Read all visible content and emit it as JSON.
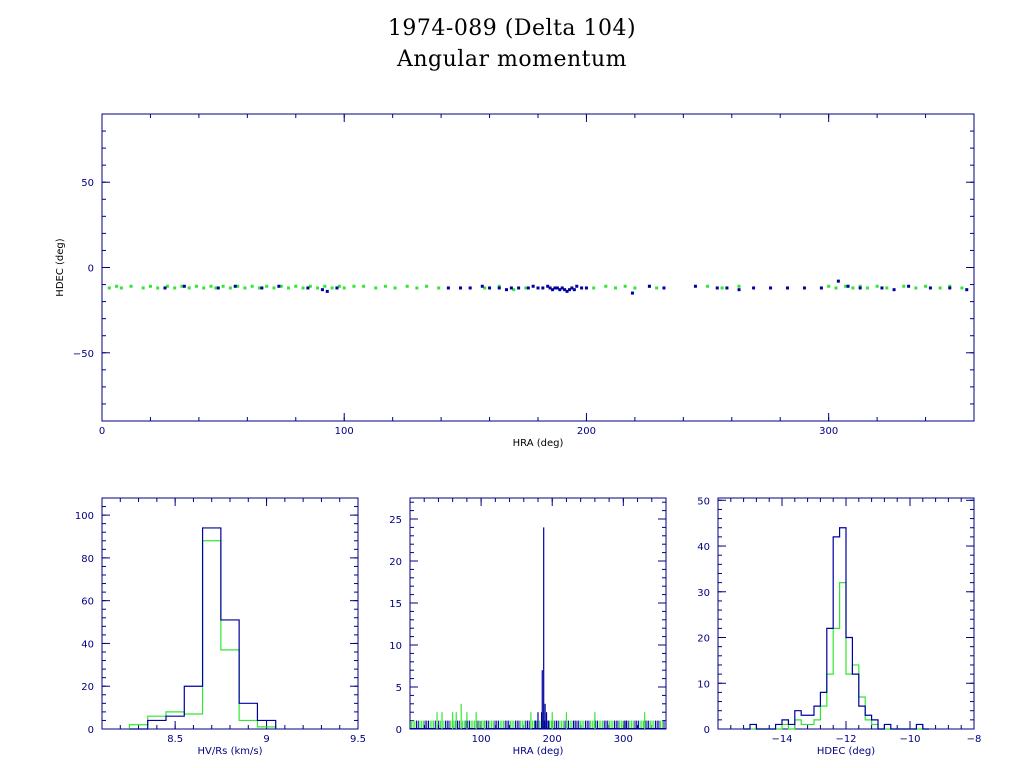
{
  "header": {
    "title": "1974-089 (Delta 104)",
    "subtitle": "Angular momentum"
  },
  "colors": {
    "blue": "#0000a0",
    "green": "#33e633",
    "axis": "#000080",
    "text_blue": "#000080"
  },
  "chart_data": [
    {
      "type": "scatter",
      "name": "hra-hdec",
      "xlabel": "HRA (deg)",
      "ylabel": "HDEC (deg)",
      "xlim": [
        0,
        360
      ],
      "ylim": [
        -90,
        90
      ],
      "xticks": [
        0,
        100,
        200,
        300
      ],
      "yticks": [
        -50,
        0,
        50
      ],
      "xticklabels": [
        "0",
        "100",
        "200",
        "300"
      ],
      "yticklabels": [
        "−50",
        "0",
        "50"
      ],
      "series": [
        {
          "color": "green",
          "x": [
            3,
            6,
            8,
            12,
            17,
            20,
            23,
            27,
            30,
            33,
            36,
            39,
            42,
            45,
            47,
            50,
            53,
            56,
            59,
            62,
            65,
            68,
            71,
            74,
            77,
            80,
            83,
            86,
            89,
            92,
            95,
            98,
            100,
            104,
            108,
            113,
            117,
            121,
            126,
            130,
            134,
            139,
            158,
            164,
            170,
            175,
            203,
            208,
            212,
            216,
            220,
            226,
            229,
            250,
            256,
            263,
            300,
            303,
            307,
            310,
            313,
            316,
            320,
            324,
            331,
            336,
            340,
            346,
            350,
            355
          ],
          "y": [
            -12,
            -11,
            -12,
            -11,
            -12,
            -11,
            -12,
            -11,
            -12,
            -11,
            -12,
            -11,
            -12,
            -11,
            -12,
            -11,
            -12,
            -11,
            -12,
            -11,
            -12,
            -11,
            -12,
            -11,
            -12,
            -11,
            -12,
            -11,
            -12,
            -11,
            -12,
            -11,
            -12,
            -11,
            -11,
            -12,
            -11,
            -12,
            -11,
            -12,
            -11,
            -12,
            -12,
            -11,
            -13,
            -12,
            -12,
            -11,
            -12,
            -11,
            -12,
            -11,
            -12,
            -11,
            -12,
            -11,
            -11,
            -12,
            -11,
            -12,
            -11,
            -12,
            -11,
            -12,
            -11,
            -12,
            -11,
            -12,
            -11,
            -12
          ]
        },
        {
          "color": "blue",
          "x": [
            26,
            34,
            48,
            55,
            66,
            73,
            85,
            91,
            93,
            97,
            143,
            148,
            152,
            157,
            160,
            164,
            167,
            169,
            172,
            176,
            178,
            180,
            182,
            184,
            185,
            186,
            187,
            188,
            189,
            190,
            191,
            192,
            193,
            194,
            195,
            196,
            198,
            200,
            219,
            226,
            232,
            245,
            254,
            258,
            263,
            269,
            276,
            283,
            290,
            297,
            304,
            308,
            313,
            322,
            327,
            333,
            342,
            350,
            357
          ],
          "y": [
            -12,
            -11,
            -12,
            -11,
            -12,
            -11,
            -12,
            -13,
            -14,
            -12,
            -12,
            -12,
            -12,
            -11,
            -12,
            -12,
            -13,
            -12,
            -12,
            -12,
            -11,
            -12,
            -12,
            -11,
            -12,
            -13,
            -12,
            -12,
            -13,
            -12,
            -13,
            -14,
            -13,
            -12,
            -13,
            -11,
            -12,
            -12,
            -15,
            -11,
            -12,
            -11,
            -12,
            -12,
            -13,
            -12,
            -12,
            -12,
            -12,
            -12,
            -8,
            -11,
            -12,
            -12,
            -13,
            -11,
            -12,
            -12,
            -13
          ]
        }
      ]
    },
    {
      "type": "histogram",
      "name": "hv-rs",
      "xlabel": "HV/Rs (km/s)",
      "xlim": [
        8.1,
        9.5
      ],
      "ylim": [
        0,
        108
      ],
      "xticks": [
        8.5,
        9,
        9.5
      ],
      "yticks": [
        0,
        20,
        40,
        60,
        80,
        100
      ],
      "xticklabels": [
        "8.5",
        "9",
        "9.5"
      ],
      "yticklabels": [
        "0",
        "20",
        "40",
        "60",
        "80",
        "100"
      ],
      "bin_edges": [
        8.25,
        8.35,
        8.45,
        8.55,
        8.65,
        8.75,
        8.85,
        8.95,
        9.05
      ],
      "series": [
        {
          "color": "blue",
          "counts": [
            0,
            4,
            6,
            20,
            94,
            51,
            12,
            4
          ]
        },
        {
          "color": "green",
          "counts": [
            2,
            6,
            8,
            7,
            88,
            37,
            4,
            1
          ]
        }
      ]
    },
    {
      "type": "histogram",
      "name": "hra-hist",
      "xlabel": "HRA (deg)",
      "xlim": [
        0,
        360
      ],
      "ylim": [
        0,
        27.5
      ],
      "xticks": [
        100,
        200,
        300
      ],
      "yticks": [
        0,
        5,
        10,
        15,
        20,
        25
      ],
      "xticklabels": [
        "100",
        "200",
        "300"
      ],
      "yticklabels": [
        "0",
        "5",
        "10",
        "15",
        "20",
        "25"
      ],
      "series": [
        {
          "color": "blue",
          "spikes": [
            [
              188,
              24
            ],
            [
              186,
              7
            ],
            [
              190,
              3
            ],
            [
              185,
              2
            ],
            [
              192,
              2
            ],
            [
              180,
              2
            ],
            [
              176,
              1
            ],
            [
              195,
              1
            ],
            [
              230,
              1
            ],
            [
              304,
              1
            ]
          ]
        },
        {
          "color": "green",
          "spikes": [
            [
              38,
              2
            ],
            [
              45,
              2
            ],
            [
              60,
              2
            ],
            [
              65,
              2
            ],
            [
              72,
              3
            ],
            [
              80,
              2
            ],
            [
              93,
              2
            ],
            [
              105,
              1
            ],
            [
              170,
              2
            ],
            [
              200,
              2
            ],
            [
              220,
              2
            ],
            [
              260,
              2
            ],
            [
              330,
              2
            ]
          ]
        }
      ]
    },
    {
      "type": "histogram",
      "name": "hdec-hist",
      "xlabel": "HDEC (deg)",
      "xlim": [
        -16,
        -8
      ],
      "ylim": [
        0,
        50.5
      ],
      "xticks": [
        -14,
        -12,
        -10,
        -8
      ],
      "yticks": [
        0,
        10,
        20,
        30,
        40,
        50
      ],
      "xticklabels": [
        "−14",
        "−12",
        "−10",
        "−8"
      ],
      "yticklabels": [
        "0",
        "10",
        "20",
        "30",
        "40",
        "50"
      ],
      "bin_start": -15.2,
      "bin_width": 0.2,
      "series": [
        {
          "color": "blue",
          "counts": [
            0,
            1,
            0,
            0,
            0,
            1,
            2,
            1,
            4,
            3,
            3,
            5,
            8,
            22,
            42,
            44,
            20,
            12,
            5,
            3,
            2,
            0,
            1,
            0,
            0,
            0,
            0,
            1,
            0
          ]
        },
        {
          "color": "green",
          "counts": [
            0,
            0,
            0,
            0,
            0,
            0,
            1,
            0,
            2,
            1,
            1,
            2,
            5,
            12,
            22,
            32,
            12,
            14,
            7,
            2,
            1,
            0,
            0,
            0,
            0,
            0,
            0,
            0,
            0
          ]
        }
      ]
    }
  ]
}
